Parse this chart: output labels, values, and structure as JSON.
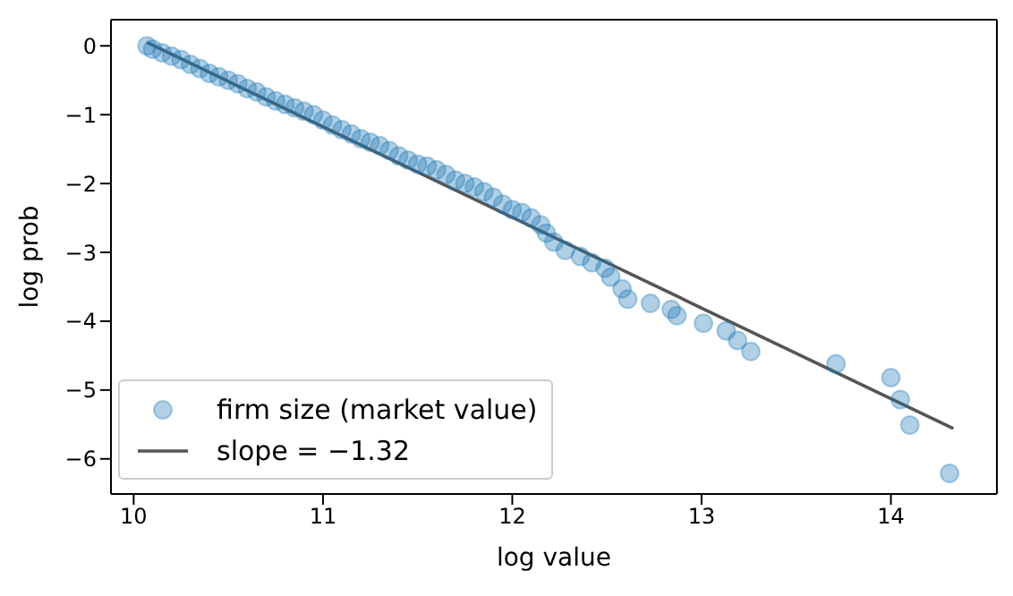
{
  "chart_data": {
    "type": "scatter",
    "xlabel": "log value",
    "ylabel": "log prob",
    "xlim": [
      9.88,
      14.56
    ],
    "ylim": [
      -6.51,
      0.38
    ],
    "xticks": [
      10,
      11,
      12,
      13,
      14
    ],
    "yticks": [
      0,
      -1,
      -2,
      -3,
      -4,
      -5,
      -6
    ],
    "grid": false,
    "legend": "bottom left",
    "marker": "circle",
    "series": [
      {
        "name": "firm size (market value)",
        "color": "#1f77b4",
        "x": [
          10.07,
          10.1,
          10.15,
          10.2,
          10.25,
          10.3,
          10.35,
          10.4,
          10.45,
          10.5,
          10.55,
          10.6,
          10.65,
          10.7,
          10.75,
          10.8,
          10.85,
          10.9,
          10.95,
          11.0,
          11.05,
          11.1,
          11.15,
          11.2,
          11.25,
          11.3,
          11.35,
          11.4,
          11.45,
          11.5,
          11.55,
          11.6,
          11.65,
          11.7,
          11.75,
          11.8,
          11.85,
          11.9,
          11.95,
          12.0,
          12.05,
          12.1,
          12.15,
          12.18,
          12.22,
          12.28,
          12.36,
          12.42,
          12.49,
          12.52,
          12.58,
          12.61,
          12.73,
          12.84,
          12.87,
          13.01,
          13.13,
          13.19,
          13.26,
          13.71,
          14.0,
          14.05,
          14.1,
          14.31
        ],
        "values": [
          0.0,
          -0.05,
          -0.1,
          -0.15,
          -0.2,
          -0.27,
          -0.33,
          -0.4,
          -0.45,
          -0.5,
          -0.55,
          -0.62,
          -0.67,
          -0.74,
          -0.8,
          -0.85,
          -0.9,
          -0.95,
          -1.0,
          -1.08,
          -1.15,
          -1.22,
          -1.28,
          -1.35,
          -1.4,
          -1.45,
          -1.52,
          -1.6,
          -1.66,
          -1.72,
          -1.75,
          -1.8,
          -1.87,
          -1.95,
          -2.0,
          -2.05,
          -2.12,
          -2.2,
          -2.3,
          -2.38,
          -2.42,
          -2.5,
          -2.6,
          -2.72,
          -2.85,
          -2.97,
          -3.06,
          -3.15,
          -3.23,
          -3.36,
          -3.53,
          -3.68,
          -3.74,
          -3.83,
          -3.92,
          -4.03,
          -4.14,
          -4.28,
          -4.44,
          -4.62,
          -4.82,
          -5.14,
          -5.51,
          -6.21
        ]
      },
      {
        "name": "slope = −1.32",
        "type": "line",
        "color": "#555555",
        "marker": "none",
        "line_style": "solid",
        "x": [
          10.07,
          14.33
        ],
        "values": [
          0.05,
          -5.56
        ]
      }
    ]
  }
}
